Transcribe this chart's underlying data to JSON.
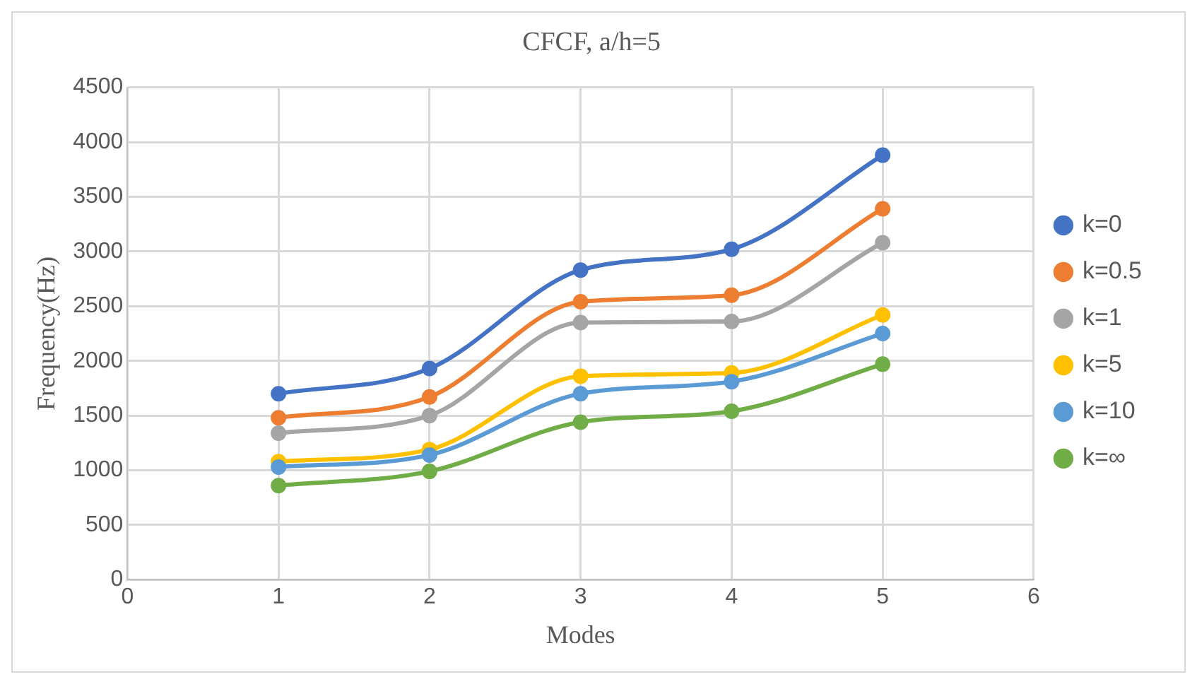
{
  "chart_data": {
    "type": "line",
    "title": "CFCF, a/h=5",
    "xlabel": "Modes",
    "ylabel": "Frequency(Hz)",
    "x": [
      1,
      2,
      3,
      4,
      5
    ],
    "series": [
      {
        "name": "k=0",
        "color": "#4472c4",
        "values": [
          1700,
          1930,
          2830,
          3020,
          3880
        ]
      },
      {
        "name": "k=0.5",
        "color": "#ed7d31",
        "values": [
          1480,
          1670,
          2540,
          2600,
          3390
        ]
      },
      {
        "name": "k=1",
        "color": "#a5a5a5",
        "values": [
          1340,
          1500,
          2350,
          2360,
          3080
        ]
      },
      {
        "name": "k=5",
        "color": "#ffc000",
        "values": [
          1080,
          1190,
          1860,
          1890,
          2420
        ]
      },
      {
        "name": "k=10",
        "color": "#5b9bd5",
        "values": [
          1030,
          1140,
          1700,
          1810,
          2250
        ]
      },
      {
        "name": "k=∞",
        "color": "#70ad47",
        "values": [
          860,
          990,
          1440,
          1540,
          1970
        ]
      }
    ],
    "xlim": [
      0,
      6
    ],
    "xticks": [
      0,
      1,
      2,
      3,
      4,
      5,
      6
    ],
    "ylim": [
      0,
      4500
    ],
    "yticks": [
      0,
      500,
      1000,
      1500,
      2000,
      2500,
      3000,
      3500,
      4000,
      4500
    ],
    "grid": true,
    "legend": "right",
    "marker": "circle",
    "line_style": "solid"
  }
}
